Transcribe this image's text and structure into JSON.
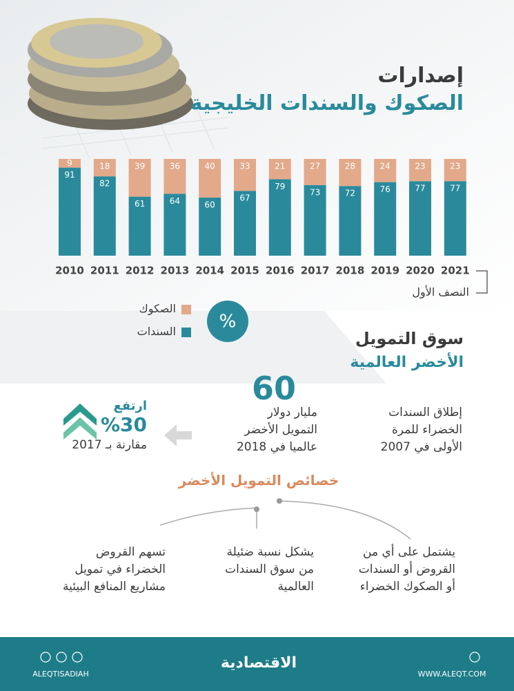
{
  "chart_data": {
    "type": "bar",
    "stacked": true,
    "title": "إصدارات",
    "subtitle": "الصكوك والسندات الخليجية",
    "unit": "%",
    "annotation": "النصف الأول",
    "categories": [
      "2010",
      "2011",
      "2012",
      "2013",
      "2014",
      "2015",
      "2016",
      "2017",
      "2018",
      "2019",
      "2020",
      "2021"
    ],
    "series": [
      {
        "name": "السندات",
        "color": "#2a8a9c",
        "values": [
          91,
          82,
          61,
          64,
          60,
          67,
          79,
          73,
          72,
          76,
          77,
          77
        ]
      },
      {
        "name": "الصكوك",
        "color": "#e2a98a",
        "values": [
          9,
          18,
          39,
          36,
          40,
          33,
          21,
          27,
          28,
          24,
          23,
          23
        ]
      }
    ],
    "ylim": [
      0,
      100
    ]
  },
  "green_market": {
    "title": "سوق التمويل",
    "subtitle": "الأخضر العالمية",
    "launch": [
      "إطلاق السندات",
      "الخضراء للمرة",
      "الأولى في 2007"
    ],
    "size": {
      "value": 60,
      "lines": [
        "مليار دولار",
        "التمويل الأخضر",
        "عالميا في 2018"
      ]
    },
    "growth": {
      "heading": "ارتفع",
      "value": "%30",
      "text": "مقارنة بـ 2017"
    }
  },
  "features": {
    "title": "خصائص التمويل الأخضر",
    "items": [
      [
        "يشتمل على أي من",
        "القروض أو السندات",
        "أو الصكوك الخضراء"
      ],
      [
        "يشكل نسبة ضئيلة",
        "من سوق السندات",
        "العالمية"
      ],
      [
        "تسهم القروض",
        "الخضراء في تمويل",
        "مشاريع المنافع البيئية"
      ]
    ]
  },
  "footer": {
    "handle": "ALEQTISADIAH",
    "logo": "الاقتصادية",
    "website": "WWW.ALEQT.COM"
  }
}
